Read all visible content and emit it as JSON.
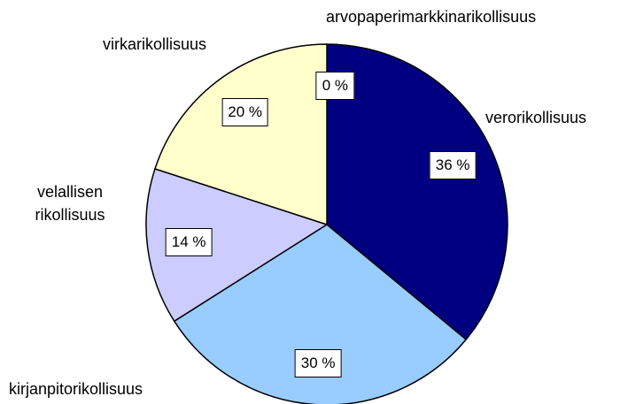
{
  "chart_data": {
    "type": "pie",
    "categories": [
      "arvopaperimarkkinarikollisuus",
      "verorikollisuus",
      "kirjanpitorikollisuus",
      "velallisen rikollisuus",
      "virkarikollisuus"
    ],
    "values": [
      0,
      36,
      30,
      14,
      20
    ],
    "value_labels": [
      "0 %",
      "36 %",
      "30 %",
      "14 %",
      "20 %"
    ],
    "colors": [
      "#ffffff",
      "#000080",
      "#99ccff",
      "#ccccff",
      "#ffffcc"
    ]
  }
}
